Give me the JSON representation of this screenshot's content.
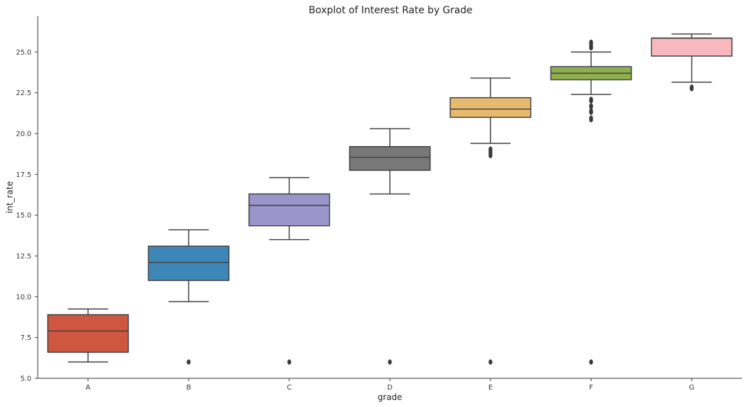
{
  "chart_data": {
    "type": "box",
    "title": "Boxplot of Interest Rate by Grade",
    "xlabel": "grade",
    "ylabel": "int_rate",
    "ylim": [
      5.0,
      27.2
    ],
    "yticks": [
      "5.0",
      "7.5",
      "10.0",
      "12.5",
      "15.0",
      "17.5",
      "20.0",
      "22.5",
      "25.0"
    ],
    "ytick_values": [
      5.0,
      7.5,
      10.0,
      12.5,
      15.0,
      17.5,
      20.0,
      22.5,
      25.0
    ],
    "grid": false,
    "categories": [
      "A",
      "B",
      "C",
      "D",
      "E",
      "F",
      "G"
    ],
    "boxes": [
      {
        "category": "A",
        "color": "#d0573f",
        "whisker_low": 6.0,
        "q1": 6.6,
        "median": 7.9,
        "q3": 8.9,
        "whisker_high": 9.25,
        "outliers": []
      },
      {
        "category": "B",
        "color": "#3d87b8",
        "whisker_low": 9.7,
        "q1": 11.0,
        "median": 12.1,
        "q3": 13.1,
        "whisker_high": 14.1,
        "outliers": [
          6.0
        ]
      },
      {
        "category": "C",
        "color": "#9b95cb",
        "whisker_low": 13.5,
        "q1": 14.35,
        "median": 15.6,
        "q3": 16.3,
        "whisker_high": 17.3,
        "outliers": [
          6.0
        ]
      },
      {
        "category": "D",
        "color": "#787878",
        "whisker_low": 16.3,
        "q1": 17.75,
        "median": 18.55,
        "q3": 19.2,
        "whisker_high": 20.3,
        "outliers": [
          6.0
        ]
      },
      {
        "category": "E",
        "color": "#e8ba70",
        "whisker_low": 19.4,
        "q1": 21.0,
        "median": 21.5,
        "q3": 22.2,
        "whisker_high": 23.4,
        "outliers": [
          6.0,
          18.65,
          18.8,
          18.95,
          19.05
        ]
      },
      {
        "category": "F",
        "color": "#8fb04e",
        "whisker_low": 22.4,
        "q1": 23.3,
        "median": 23.7,
        "q3": 24.1,
        "whisker_high": 25.0,
        "outliers": [
          6.0,
          20.85,
          20.95,
          21.3,
          21.4,
          21.65,
          21.7,
          22.0,
          22.1,
          25.25,
          25.35,
          25.5,
          25.6
        ]
      },
      {
        "category": "G",
        "color": "#f7b9bd",
        "whisker_low": 23.15,
        "q1": 24.75,
        "median": 25.85,
        "q3": 25.85,
        "whisker_high": 26.1,
        "outliers": [
          22.75,
          22.85
        ]
      }
    ]
  }
}
